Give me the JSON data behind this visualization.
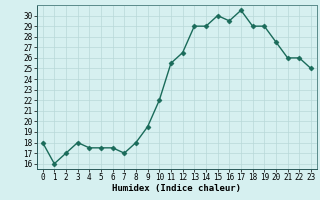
{
  "x": [
    0,
    1,
    2,
    3,
    4,
    5,
    6,
    7,
    8,
    9,
    10,
    11,
    12,
    13,
    14,
    15,
    16,
    17,
    18,
    19,
    20,
    21,
    22,
    23
  ],
  "y": [
    18,
    16,
    17,
    18,
    17.5,
    17.5,
    17.5,
    17,
    18,
    19.5,
    22,
    25.5,
    26.5,
    29,
    29,
    30,
    29.5,
    30.5,
    29,
    29,
    27.5,
    26,
    26,
    25
  ],
  "line_color": "#1a6b5a",
  "marker": "D",
  "marker_size": 2.5,
  "bg_color": "#d6f0f0",
  "grid_color": "#b8d8d8",
  "xlabel": "Humidex (Indice chaleur)",
  "ylim": [
    15.5,
    31
  ],
  "xlim": [
    -0.5,
    23.5
  ],
  "yticks": [
    16,
    17,
    18,
    19,
    20,
    21,
    22,
    23,
    24,
    25,
    26,
    27,
    28,
    29,
    30
  ],
  "xticks": [
    0,
    1,
    2,
    3,
    4,
    5,
    6,
    7,
    8,
    9,
    10,
    11,
    12,
    13,
    14,
    15,
    16,
    17,
    18,
    19,
    20,
    21,
    22,
    23
  ],
  "tick_fontsize": 5.5,
  "xlabel_fontsize": 6.5,
  "line_width": 1.0
}
